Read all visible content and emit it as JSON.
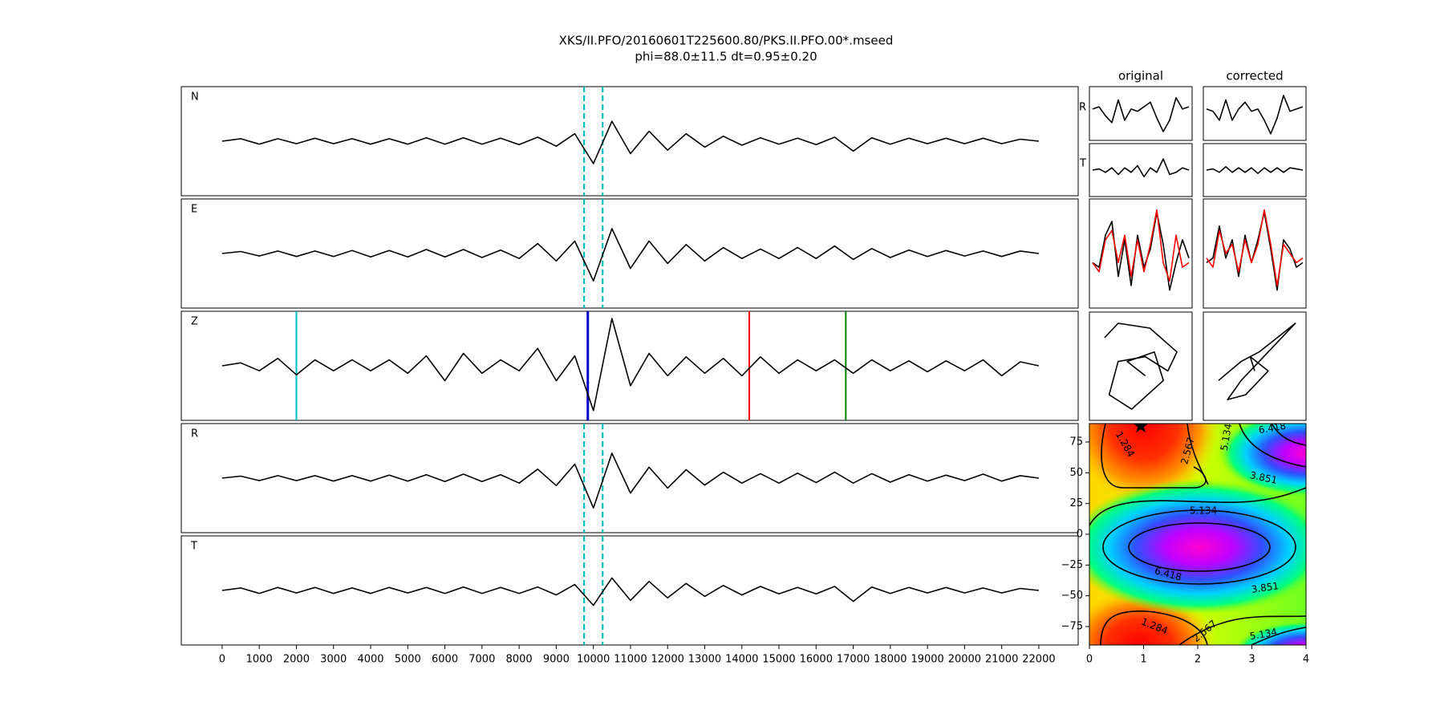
{
  "chart_data": [
    {
      "type": "seismogram",
      "title": [
        "XKS/II.PFO/20160601T225600.80/PKS.II.PFO.00*.mseed",
        "phi=88.0±11.5 dt=0.95±0.20"
      ],
      "x": [
        0,
        500,
        1000,
        1500,
        2000,
        2500,
        3000,
        3500,
        4000,
        4500,
        5000,
        5500,
        6000,
        6500,
        7000,
        7500,
        8000,
        8500,
        9000,
        9500,
        10000,
        10500,
        11000,
        11500,
        12000,
        12500,
        13000,
        13500,
        14000,
        14500,
        15000,
        15500,
        16000,
        16500,
        17000,
        17500,
        18000,
        18500,
        19000,
        19500,
        20000,
        20500,
        21000,
        21500,
        22000
      ],
      "xlim": [
        -1100,
        23060
      ],
      "xticks": [
        0,
        1000,
        2000,
        3000,
        4000,
        5000,
        6000,
        7000,
        8000,
        9000,
        10000,
        11000,
        12000,
        13000,
        14000,
        15000,
        16000,
        17000,
        18000,
        19000,
        20000,
        21000,
        22000
      ],
      "window": [
        9750,
        10250
      ],
      "window_color": "#00bfbf",
      "traces": [
        {
          "label": "N",
          "values": [
            0,
            0.05,
            -0.06,
            0.05,
            -0.05,
            0.06,
            -0.05,
            0.05,
            -0.06,
            0.05,
            -0.06,
            0.07,
            -0.06,
            0.07,
            -0.06,
            0.06,
            -0.07,
            0.08,
            -0.1,
            0.15,
            -0.45,
            0.4,
            -0.25,
            0.2,
            -0.18,
            0.15,
            -0.12,
            0.1,
            -0.08,
            0.07,
            -0.06,
            0.06,
            -0.07,
            0.08,
            -0.2,
            0.07,
            -0.06,
            0.06,
            -0.05,
            0.06,
            -0.05,
            0.06,
            -0.05,
            0.04,
            0
          ]
        },
        {
          "label": "E",
          "values": [
            0,
            0.04,
            -0.05,
            0.05,
            -0.06,
            0.05,
            -0.06,
            0.06,
            -0.07,
            0.06,
            -0.07,
            0.08,
            -0.07,
            0.08,
            -0.08,
            0.07,
            -0.1,
            0.2,
            -0.15,
            0.25,
            -0.55,
            0.5,
            -0.3,
            0.25,
            -0.2,
            0.18,
            -0.15,
            0.12,
            -0.1,
            0.09,
            -0.1,
            0.12,
            -0.1,
            0.15,
            -0.12,
            0.1,
            -0.08,
            0.07,
            -0.06,
            0.06,
            -0.05,
            0.05,
            -0.06,
            0.05,
            0
          ]
        },
        {
          "label": "Z",
          "values": [
            0,
            0.06,
            -0.1,
            0.15,
            -0.18,
            0.12,
            -0.1,
            0.12,
            -0.1,
            0.12,
            -0.15,
            0.2,
            -0.3,
            0.25,
            -0.15,
            0.12,
            -0.1,
            0.35,
            -0.3,
            0.2,
            -0.9,
            0.95,
            -0.4,
            0.25,
            -0.2,
            0.18,
            -0.15,
            0.15,
            -0.2,
            0.18,
            -0.15,
            0.12,
            -0.1,
            0.12,
            -0.15,
            0.12,
            -0.1,
            0.1,
            -0.12,
            0.1,
            -0.1,
            0.12,
            -0.2,
            0.08,
            0
          ],
          "picks": [
            {
              "value": 2000,
              "color": "#00bfbf"
            },
            {
              "value": 9850,
              "color": "#0000cc"
            },
            {
              "value": 14200,
              "color": "#ff0000"
            },
            {
              "value": 16800,
              "color": "#008000"
            }
          ]
        },
        {
          "label": "R",
          "values": [
            0,
            0.04,
            -0.05,
            0.05,
            -0.05,
            0.05,
            -0.06,
            0.05,
            -0.06,
            0.06,
            -0.06,
            0.07,
            -0.07,
            0.08,
            -0.07,
            0.07,
            -0.1,
            0.18,
            -0.15,
            0.28,
            -0.6,
            0.5,
            -0.3,
            0.22,
            -0.2,
            0.17,
            -0.14,
            0.12,
            -0.1,
            0.09,
            -0.1,
            0.1,
            -0.09,
            0.12,
            -0.1,
            0.09,
            -0.08,
            0.07,
            -0.06,
            0.06,
            -0.05,
            0.08,
            -0.06,
            0.05,
            0
          ]
        },
        {
          "label": "T",
          "values": [
            0,
            0.05,
            -0.06,
            0.06,
            -0.05,
            0.06,
            -0.06,
            0.05,
            -0.06,
            0.06,
            -0.05,
            0.06,
            -0.06,
            0.07,
            -0.06,
            0.06,
            -0.06,
            0.07,
            -0.09,
            0.12,
            -0.3,
            0.25,
            -0.2,
            0.18,
            -0.15,
            0.14,
            -0.12,
            0.1,
            -0.09,
            0.08,
            -0.07,
            0.06,
            -0.07,
            0.08,
            -0.22,
            0.07,
            -0.06,
            0.06,
            -0.05,
            0.06,
            -0.05,
            0.05,
            -0.05,
            0.04,
            0
          ]
        }
      ]
    },
    {
      "type": "waveform-grid",
      "row_labels": [
        "R",
        "T"
      ],
      "colors": [
        "#000000",
        "#ff0000"
      ],
      "columns": [
        {
          "title": "original",
          "R": [
            0.2,
            0.3,
            -0.1,
            -0.4,
            0.6,
            -0.3,
            0.2,
            0.1,
            0.3,
            0.5,
            -0.2,
            -0.8,
            -0.3,
            0.7,
            0.2,
            0.3
          ],
          "T": [
            0,
            0.05,
            -0.1,
            0.1,
            -0.2,
            0.1,
            -0.1,
            0.2,
            -0.3,
            0.1,
            -0.1,
            0.5,
            -0.2,
            -0.1,
            0.1,
            0
          ],
          "overlay": [
            [
              -0.2,
              -0.3,
              0.4,
              0.7,
              -0.5,
              0.3,
              -0.7,
              0.4,
              -0.3,
              0.1,
              0.9,
              0.2,
              -0.8,
              -0.2,
              0.3,
              -0.1
            ],
            [
              -0.2,
              -0.4,
              0.3,
              0.5,
              -0.2,
              0.4,
              -0.5,
              0.3,
              -0.4,
              0.2,
              0.95,
              -0.2,
              -0.6,
              0.4,
              -0.3,
              -0.2
            ]
          ],
          "pm_x": [
            -0.8,
            -0.5,
            0.2,
            0.8,
            0.6,
            0.1,
            -0.5,
            -0.7,
            -0.2,
            0.5,
            0.3,
            -0.3,
            0.1
          ],
          "pm_y": [
            0.6,
            0.9,
            0.8,
            0.3,
            -0.1,
            0.2,
            0.1,
            -0.6,
            -0.9,
            -0.3,
            0.3,
            0.1,
            -0.2
          ]
        },
        {
          "title": "corrected",
          "R": [
            0.2,
            0.1,
            -0.3,
            0.6,
            -0.3,
            0.2,
            0.5,
            0.1,
            0.2,
            -0.3,
            -0.9,
            -0.2,
            0.8,
            0.1,
            0.2,
            0.3
          ],
          "T": [
            0,
            0.05,
            -0.1,
            0.15,
            -0.1,
            0.1,
            -0.1,
            0.1,
            -0.15,
            0.1,
            -0.1,
            0.1,
            -0.1,
            0.1,
            0.05,
            0
          ],
          "overlay": [
            [
              -0.2,
              -0.1,
              0.6,
              -0.1,
              0.3,
              -0.5,
              0.4,
              -0.2,
              0.3,
              0.9,
              0.1,
              -0.8,
              0.3,
              0.1,
              -0.3,
              -0.2
            ],
            [
              -0.1,
              -0.3,
              0.5,
              0,
              0.2,
              -0.4,
              0.3,
              -0.2,
              0.2,
              0.95,
              0.2,
              -0.7,
              0.2,
              0,
              -0.2,
              -0.1
            ]
          ],
          "pm_x": [
            -0.8,
            -0.3,
            0.1,
            0.5,
            0.9,
            0.7,
            0.2,
            -0.3,
            -0.6,
            -0.2,
            0.3,
            -0.1,
            0
          ],
          "pm_y": [
            -0.3,
            0.1,
            0.3,
            0.6,
            0.9,
            0.7,
            0.2,
            -0.3,
            -0.7,
            -0.6,
            -0.1,
            0.2,
            -0.1
          ]
        }
      ]
    },
    {
      "type": "contour",
      "xlim": [
        0,
        4
      ],
      "ylim": [
        -90,
        90
      ],
      "xticks": [
        0,
        1,
        2,
        3,
        4
      ],
      "yticks": [
        {
          "value": -75,
          "label": "−75"
        },
        {
          "value": -50,
          "label": "−50"
        },
        {
          "value": -25,
          "label": "−25"
        },
        0,
        25,
        50,
        75
      ],
      "levels": [
        1.284,
        2.567,
        3.851,
        5.134,
        6.418
      ],
      "best": {
        "x": 0.95,
        "y": 88
      }
    }
  ]
}
